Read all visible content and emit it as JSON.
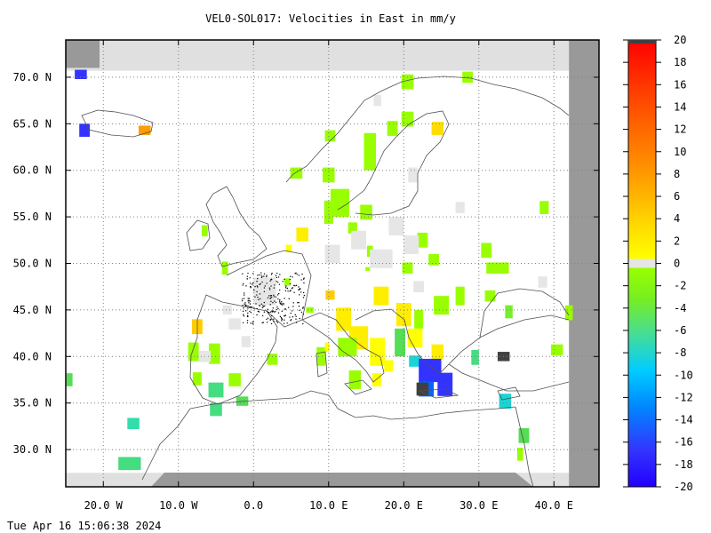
{
  "title": "VEL0-SOL017: Velocities in East in mm/y",
  "timestamp": "Tue Apr 16 15:06:38 2024",
  "colors": {
    "land_mask": "#999999",
    "gray_band": "#e0e0e0",
    "grid": "#808080",
    "coast": "#505050",
    "zero_class": "#e6e6e6",
    "very_negative": "#404040"
  },
  "chart_data": {
    "type": "heatmap",
    "title": "VEL0-SOL017: Velocities in East in mm/y",
    "xlim": [
      -25,
      46
    ],
    "ylim": [
      26,
      74
    ],
    "grid": true,
    "colorbar_position": "right",
    "x_ticks": [
      {
        "value": -20,
        "label": "20.0 W"
      },
      {
        "value": -10,
        "label": "10.0 W"
      },
      {
        "value": 0,
        "label": "0.0"
      },
      {
        "value": 10,
        "label": "10.0 E"
      },
      {
        "value": 20,
        "label": "20.0 E"
      },
      {
        "value": 30,
        "label": "30.0 E"
      },
      {
        "value": 40,
        "label": "40.0 E"
      }
    ],
    "y_ticks": [
      {
        "value": 70,
        "label": "70.0 N"
      },
      {
        "value": 65,
        "label": "65.0 N"
      },
      {
        "value": 60,
        "label": "60.0 N"
      },
      {
        "value": 55,
        "label": "55.0 N"
      },
      {
        "value": 50,
        "label": "50.0 N"
      },
      {
        "value": 45,
        "label": "45.0 N"
      },
      {
        "value": 40,
        "label": "40.0 N"
      },
      {
        "value": 35,
        "label": "35.0 N"
      },
      {
        "value": 30,
        "label": "30.0 N"
      }
    ],
    "colorbar": {
      "range": [
        -20,
        20
      ],
      "tick_labels": [
        "20",
        "18",
        "16",
        "14",
        "12",
        "10",
        "8",
        "6",
        "4",
        "2",
        "0",
        "-2",
        "-4",
        "-6",
        "-8",
        "-10",
        "-12",
        "-14",
        "-16",
        "-18",
        "-20"
      ],
      "zero_band": [
        -0.5,
        0.5
      ]
    },
    "cells": [
      {
        "lon": -23,
        "lat": 70.3,
        "w": 1.6,
        "h": 1.0,
        "v": -18
      },
      {
        "lon": -22.5,
        "lat": 64.3,
        "w": 1.4,
        "h": 1.4,
        "v": -18
      },
      {
        "lon": -14.5,
        "lat": 64.3,
        "w": 1.6,
        "h": 1.0,
        "v": 7
      },
      {
        "lon": -24.5,
        "lat": 37.5,
        "w": 0.8,
        "h": 1.4,
        "v": -3
      },
      {
        "lon": -16,
        "lat": 32.8,
        "w": 1.6,
        "h": 1.2,
        "v": -5
      },
      {
        "lon": -16.5,
        "lat": 28.5,
        "w": 3,
        "h": 1.4,
        "v": -4
      },
      {
        "lon": -7.5,
        "lat": 43.2,
        "w": 1.4,
        "h": 1.6,
        "v": 4
      },
      {
        "lon": -8,
        "lat": 40.5,
        "w": 1.4,
        "h": 2.0,
        "v": -1
      },
      {
        "lon": -7.5,
        "lat": 37.6,
        "w": 1.2,
        "h": 1.4,
        "v": -1
      },
      {
        "lon": -5.2,
        "lat": 40.3,
        "w": 1.5,
        "h": 2.2,
        "v": -1
      },
      {
        "lon": -5.0,
        "lat": 36.4,
        "w": 2.0,
        "h": 1.6,
        "v": -4
      },
      {
        "lon": -5.0,
        "lat": 34.3,
        "w": 1.6,
        "h": 1.4,
        "v": -4
      },
      {
        "lon": -2.5,
        "lat": 37.5,
        "w": 1.6,
        "h": 1.4,
        "v": -1
      },
      {
        "lon": -1.5,
        "lat": 35.2,
        "w": 1.6,
        "h": 1.0,
        "v": -3
      },
      {
        "lon": 2.5,
        "lat": 39.7,
        "w": 1.4,
        "h": 1.2,
        "v": -1
      },
      {
        "lon": -3.8,
        "lat": 49.5,
        "w": 0.8,
        "h": 1.4,
        "v": -1
      },
      {
        "lon": -6.5,
        "lat": 53.5,
        "w": 0.8,
        "h": 1.2,
        "v": -1
      },
      {
        "lon": 5.7,
        "lat": 59.7,
        "w": 1.6,
        "h": 1.2,
        "v": -1
      },
      {
        "lon": 10,
        "lat": 59.5,
        "w": 1.6,
        "h": 1.6,
        "v": -1
      },
      {
        "lon": 15.5,
        "lat": 62,
        "w": 1.6,
        "h": 4.0,
        "v": -1
      },
      {
        "lon": 11.5,
        "lat": 56.5,
        "w": 2.5,
        "h": 3.0,
        "v": -1
      },
      {
        "lon": 10.0,
        "lat": 55.5,
        "w": 1.2,
        "h": 2.5,
        "v": -1
      },
      {
        "lon": 15.0,
        "lat": 55.5,
        "w": 1.6,
        "h": 1.6,
        "v": -1
      },
      {
        "lon": 20.5,
        "lat": 65.5,
        "w": 1.6,
        "h": 1.6,
        "v": -1
      },
      {
        "lon": 18.5,
        "lat": 64.5,
        "w": 1.4,
        "h": 1.6,
        "v": -1
      },
      {
        "lon": 20.5,
        "lat": 69.5,
        "w": 1.6,
        "h": 1.6,
        "v": -1
      },
      {
        "lon": 28.5,
        "lat": 70,
        "w": 1.4,
        "h": 1.2,
        "v": -1
      },
      {
        "lon": 10.2,
        "lat": 63.7,
        "w": 1.4,
        "h": 1.2,
        "v": -1
      },
      {
        "lon": 24.5,
        "lat": 64.5,
        "w": 1.6,
        "h": 1.4,
        "v": 3
      },
      {
        "lon": 6.5,
        "lat": 53.1,
        "w": 1.6,
        "h": 1.5,
        "v": 2
      },
      {
        "lon": 4.7,
        "lat": 51.6,
        "w": 0.8,
        "h": 0.8,
        "v": 1
      },
      {
        "lon": 17,
        "lat": 46.5,
        "w": 2,
        "h": 2,
        "v": 2
      },
      {
        "lon": 10.2,
        "lat": 46.6,
        "w": 1.2,
        "h": 1.0,
        "v": 4
      },
      {
        "lon": 12,
        "lat": 44,
        "w": 2,
        "h": 2.5,
        "v": 2
      },
      {
        "lon": 14,
        "lat": 42,
        "w": 2.5,
        "h": 2.5,
        "v": 2
      },
      {
        "lon": 16.5,
        "lat": 40.5,
        "w": 2,
        "h": 3,
        "v": 1
      },
      {
        "lon": 20,
        "lat": 44.5,
        "w": 2,
        "h": 2.5,
        "v": 2
      },
      {
        "lon": 21.5,
        "lat": 42,
        "w": 2,
        "h": 2,
        "v": 1
      },
      {
        "lon": 24.5,
        "lat": 40.5,
        "w": 1.6,
        "h": 1.6,
        "v": 2
      },
      {
        "lon": 12.5,
        "lat": 41,
        "w": 2.5,
        "h": 2,
        "v": -1
      },
      {
        "lon": 13.5,
        "lat": 37.5,
        "w": 1.6,
        "h": 2,
        "v": -1
      },
      {
        "lon": 16.4,
        "lat": 37.5,
        "w": 1.2,
        "h": 1.4,
        "v": 1
      },
      {
        "lon": 9.0,
        "lat": 40.0,
        "w": 1.2,
        "h": 2.0,
        "v": -1
      },
      {
        "lon": 19.5,
        "lat": 41.5,
        "w": 1.4,
        "h": 3,
        "v": -3
      },
      {
        "lon": 21.5,
        "lat": 39.5,
        "w": 1.6,
        "h": 1.2,
        "v": -6
      },
      {
        "lon": 23.5,
        "lat": 38.5,
        "w": 3,
        "h": 2.5,
        "v": -18
      },
      {
        "lon": 25.5,
        "lat": 37,
        "w": 2,
        "h": 2.5,
        "v": -18
      },
      {
        "lon": 23,
        "lat": 36.5,
        "w": 2.0,
        "h": 1.6,
        "v": -14
      },
      {
        "lon": 22.5,
        "lat": 36.5,
        "w": 1.6,
        "h": 1.4,
        "v": -20
      },
      {
        "lon": 22,
        "lat": 44,
        "w": 1.2,
        "h": 2.0,
        "v": -1
      },
      {
        "lon": 25.0,
        "lat": 45.5,
        "w": 2.0,
        "h": 2.0,
        "v": -1
      },
      {
        "lon": 27.5,
        "lat": 46.5,
        "w": 1.2,
        "h": 2.0,
        "v": -1
      },
      {
        "lon": 29.5,
        "lat": 39.9,
        "w": 1.0,
        "h": 1.6,
        "v": -4
      },
      {
        "lon": 33.3,
        "lat": 40.0,
        "w": 1.6,
        "h": 1.0,
        "v": -20
      },
      {
        "lon": 40.4,
        "lat": 40.7,
        "w": 1.6,
        "h": 1.2,
        "v": -1
      },
      {
        "lon": 42.0,
        "lat": 44.7,
        "w": 1.0,
        "h": 1.6,
        "v": -1
      },
      {
        "lon": 33.5,
        "lat": 35.2,
        "w": 1.6,
        "h": 1.6,
        "v": -6
      },
      {
        "lon": 36.0,
        "lat": 31.5,
        "w": 1.4,
        "h": 1.6,
        "v": -3
      },
      {
        "lon": 35.5,
        "lat": 29.5,
        "w": 0.8,
        "h": 1.4,
        "v": -1
      },
      {
        "lon": 31.0,
        "lat": 51.4,
        "w": 1.4,
        "h": 1.6,
        "v": -1
      },
      {
        "lon": 32.5,
        "lat": 49.5,
        "w": 3,
        "h": 1.2,
        "v": -1
      },
      {
        "lon": 31.5,
        "lat": 46.5,
        "w": 1.4,
        "h": 1.2,
        "v": -1
      },
      {
        "lon": 34.0,
        "lat": 44.8,
        "w": 1.0,
        "h": 1.4,
        "v": -2
      },
      {
        "lon": 38.7,
        "lat": 56.0,
        "w": 1.2,
        "h": 1.4,
        "v": -1
      },
      {
        "lon": 22.5,
        "lat": 52.5,
        "w": 1.4,
        "h": 1.6,
        "v": -1
      },
      {
        "lon": 24.0,
        "lat": 50.4,
        "w": 1.4,
        "h": 1.2,
        "v": -1
      },
      {
        "lon": 20.5,
        "lat": 49.5,
        "w": 1.4,
        "h": 1.2,
        "v": -1
      },
      {
        "lon": 15.5,
        "lat": 51.3,
        "w": 0.8,
        "h": 1.2,
        "v": -1
      },
      {
        "lon": 13.2,
        "lat": 53.8,
        "w": 1.2,
        "h": 1.2,
        "v": -1
      },
      {
        "lon": 4.5,
        "lat": 48.0,
        "w": 0.8,
        "h": 0.8,
        "v": -1
      },
      {
        "lon": 15.2,
        "lat": 49.4,
        "w": 0.6,
        "h": 0.4,
        "v": -1
      },
      {
        "lon": 7.5,
        "lat": 45.0,
        "w": 1.0,
        "h": 0.6,
        "v": -1
      },
      {
        "lon": 9.8,
        "lat": 41.0,
        "w": 0.6,
        "h": 1.0,
        "v": 1
      },
      {
        "lon": 18,
        "lat": 39,
        "w": 1.2,
        "h": 1.2,
        "v": 1
      },
      {
        "lon": 21,
        "lat": 52,
        "w": 2,
        "h": 2,
        "v": 0
      },
      {
        "lon": 17,
        "lat": 50.5,
        "w": 3,
        "h": 2,
        "v": 0
      },
      {
        "lon": 14,
        "lat": 52.5,
        "w": 2,
        "h": 2,
        "v": 0
      },
      {
        "lon": 10.5,
        "lat": 51,
        "w": 2,
        "h": 2,
        "v": 0
      },
      {
        "lon": 19,
        "lat": 54,
        "w": 2,
        "h": 2,
        "v": 0
      },
      {
        "lon": 21.2,
        "lat": 59.5,
        "w": 1.2,
        "h": 1.6,
        "v": 0
      },
      {
        "lon": 16.5,
        "lat": 67.5,
        "w": 1.0,
        "h": 1.2,
        "v": 0
      },
      {
        "lon": 27.5,
        "lat": 56,
        "w": 1.2,
        "h": 1.2,
        "v": 0
      },
      {
        "lon": -2.5,
        "lat": 43.5,
        "w": 1.6,
        "h": 1.2,
        "v": 0
      },
      {
        "lon": -6.5,
        "lat": 40.0,
        "w": 1.6,
        "h": 1.2,
        "v": 0
      },
      {
        "lon": -1.0,
        "lat": 41.6,
        "w": 1.2,
        "h": 1.2,
        "v": 0
      },
      {
        "lon": -3.5,
        "lat": 45.0,
        "w": 1.2,
        "h": 1.0,
        "v": 0
      },
      {
        "lon": 38.5,
        "lat": 48.0,
        "w": 1.2,
        "h": 1.2,
        "v": 0
      },
      {
        "lon": 22.0,
        "lat": 47.5,
        "w": 1.4,
        "h": 1.2,
        "v": 0
      },
      {
        "lon": 1.5,
        "lat": 47.0,
        "w": 3,
        "h": 3,
        "v": 0
      }
    ]
  }
}
